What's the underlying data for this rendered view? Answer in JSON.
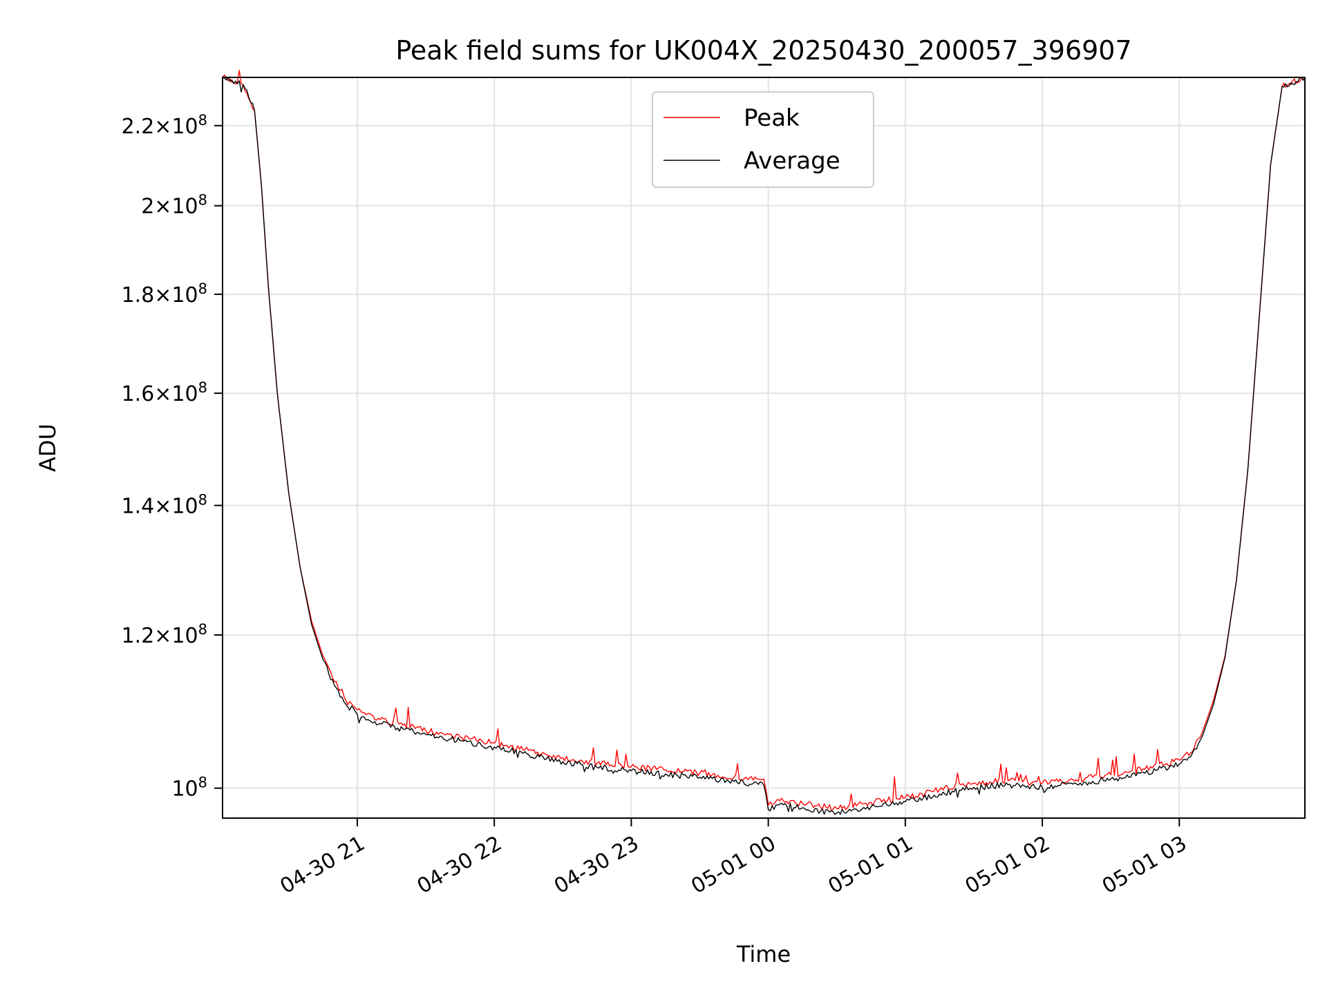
{
  "chart_data": {
    "type": "line",
    "title": "Peak field sums for UK004X_20250430_200057_396907",
    "xlabel": "Time",
    "ylabel": "ADU",
    "yscale": "log",
    "grid": true,
    "legend_position": "upper center",
    "xlim": [
      "2025-04-30 20:01",
      "2025-05-01 03:55"
    ],
    "ylim": [
      96500000,
      233000000
    ],
    "x_ticks": [
      "04-30 21",
      "04-30 22",
      "04-30 23",
      "05-01 00",
      "05-01 01",
      "05-01 02",
      "05-01 03"
    ],
    "x_tick_times": [
      "2025-04-30 21:00",
      "2025-04-30 22:00",
      "2025-04-30 23:00",
      "2025-05-01 00:00",
      "2025-05-01 01:00",
      "2025-05-01 02:00",
      "2025-05-01 03:00"
    ],
    "y_ticks": [
      {
        "value": 100000000,
        "mant": "",
        "exp": "8"
      },
      {
        "value": 120000000,
        "mant": "1.2",
        "exp": "8"
      },
      {
        "value": 140000000,
        "mant": "1.4",
        "exp": "8"
      },
      {
        "value": 160000000,
        "mant": "1.6",
        "exp": "8"
      },
      {
        "value": 180000000,
        "mant": "1.8",
        "exp": "8"
      },
      {
        "value": 200000000,
        "mant": "2",
        "exp": "8"
      },
      {
        "value": 220000000,
        "mant": "2.2",
        "exp": "8"
      }
    ],
    "series": [
      {
        "name": "Peak",
        "color": "#ff0000",
        "x": [
          "2025-04-30 20:01",
          "2025-04-30 20:10",
          "2025-04-30 20:15",
          "2025-04-30 20:18",
          "2025-04-30 20:21",
          "2025-04-30 20:25",
          "2025-04-30 20:30",
          "2025-04-30 20:35",
          "2025-04-30 20:40",
          "2025-04-30 20:45",
          "2025-04-30 20:50",
          "2025-04-30 20:55",
          "2025-04-30 21:00",
          "2025-04-30 21:10",
          "2025-04-30 21:20",
          "2025-04-30 21:30",
          "2025-04-30 21:45",
          "2025-04-30 22:00",
          "2025-04-30 22:15",
          "2025-04-30 22:30",
          "2025-04-30 22:45",
          "2025-04-30 23:00",
          "2025-04-30 23:15",
          "2025-04-30 23:30",
          "2025-04-30 23:45",
          "2025-04-30 23:58",
          "2025-05-01 00:00",
          "2025-05-01 00:05",
          "2025-05-01 00:15",
          "2025-05-01 00:30",
          "2025-05-01 00:45",
          "2025-05-01 01:00",
          "2025-05-01 01:15",
          "2025-05-01 01:30",
          "2025-05-01 01:45",
          "2025-05-01 02:00",
          "2025-05-01 02:15",
          "2025-05-01 02:30",
          "2025-05-01 02:45",
          "2025-05-01 03:00",
          "2025-05-01 03:05",
          "2025-05-01 03:10",
          "2025-05-01 03:15",
          "2025-05-01 03:20",
          "2025-05-01 03:25",
          "2025-05-01 03:30",
          "2025-05-01 03:35",
          "2025-05-01 03:40",
          "2025-05-01 03:45",
          "2025-05-01 03:55"
        ],
        "y": [
          233000000,
          231000000,
          224000000,
          205000000,
          182000000,
          160000000,
          142000000,
          130000000,
          122000000,
          117000000,
          113500000,
          111000000,
          109800000,
          108500000,
          107800000,
          107100000,
          106300000,
          105500000,
          104600000,
          103700000,
          103000000,
          102600000,
          102200000,
          101800000,
          101300000,
          101100000,
          98000000,
          98500000,
          98200000,
          97600000,
          98300000,
          98900000,
          99800000,
          100600000,
          100900000,
          100600000,
          101000000,
          101600000,
          102300000,
          103400000,
          104300000,
          106800000,
          111000000,
          117000000,
          128000000,
          146000000,
          175000000,
          210000000,
          230500000,
          233000000
        ]
      },
      {
        "name": "Average",
        "color": "#000000",
        "x": [
          "2025-04-30 20:01",
          "2025-04-30 20:10",
          "2025-04-30 20:15",
          "2025-04-30 20:18",
          "2025-04-30 20:21",
          "2025-04-30 20:25",
          "2025-04-30 20:30",
          "2025-04-30 20:35",
          "2025-04-30 20:40",
          "2025-04-30 20:45",
          "2025-04-30 20:50",
          "2025-04-30 20:55",
          "2025-04-30 21:00",
          "2025-04-30 21:10",
          "2025-04-30 21:20",
          "2025-04-30 21:30",
          "2025-04-30 21:45",
          "2025-04-30 22:00",
          "2025-04-30 22:15",
          "2025-04-30 22:30",
          "2025-04-30 22:45",
          "2025-04-30 23:00",
          "2025-04-30 23:15",
          "2025-04-30 23:30",
          "2025-04-30 23:45",
          "2025-04-30 23:58",
          "2025-05-01 00:00",
          "2025-05-01 00:05",
          "2025-05-01 00:15",
          "2025-05-01 00:30",
          "2025-05-01 00:45",
          "2025-05-01 01:00",
          "2025-05-01 01:15",
          "2025-05-01 01:30",
          "2025-05-01 01:45",
          "2025-05-01 02:00",
          "2025-05-01 02:15",
          "2025-05-01 02:30",
          "2025-05-01 02:45",
          "2025-05-01 03:00",
          "2025-05-01 03:05",
          "2025-05-01 03:10",
          "2025-05-01 03:15",
          "2025-05-01 03:20",
          "2025-05-01 03:25",
          "2025-05-01 03:30",
          "2025-05-01 03:35",
          "2025-05-01 03:40",
          "2025-05-01 03:45",
          "2025-05-01 03:55"
        ],
        "y": [
          233000000,
          231000000,
          224000000,
          205000000,
          182000000,
          160000000,
          142000000,
          130000000,
          121500000,
          116500000,
          113000000,
          110500000,
          109200000,
          108000000,
          107300000,
          106600000,
          105800000,
          105000000,
          104100000,
          103200000,
          102500000,
          102100000,
          101700000,
          101300000,
          100800000,
          100400000,
          97500000,
          98100000,
          97700000,
          97100000,
          97800000,
          98400000,
          99300000,
          100100000,
          100400000,
          100100000,
          100500000,
          101100000,
          101800000,
          102900000,
          103800000,
          106300000,
          110500000,
          116800000,
          128000000,
          146000000,
          175000000,
          210000000,
          230500000,
          233000000
        ]
      }
    ]
  }
}
